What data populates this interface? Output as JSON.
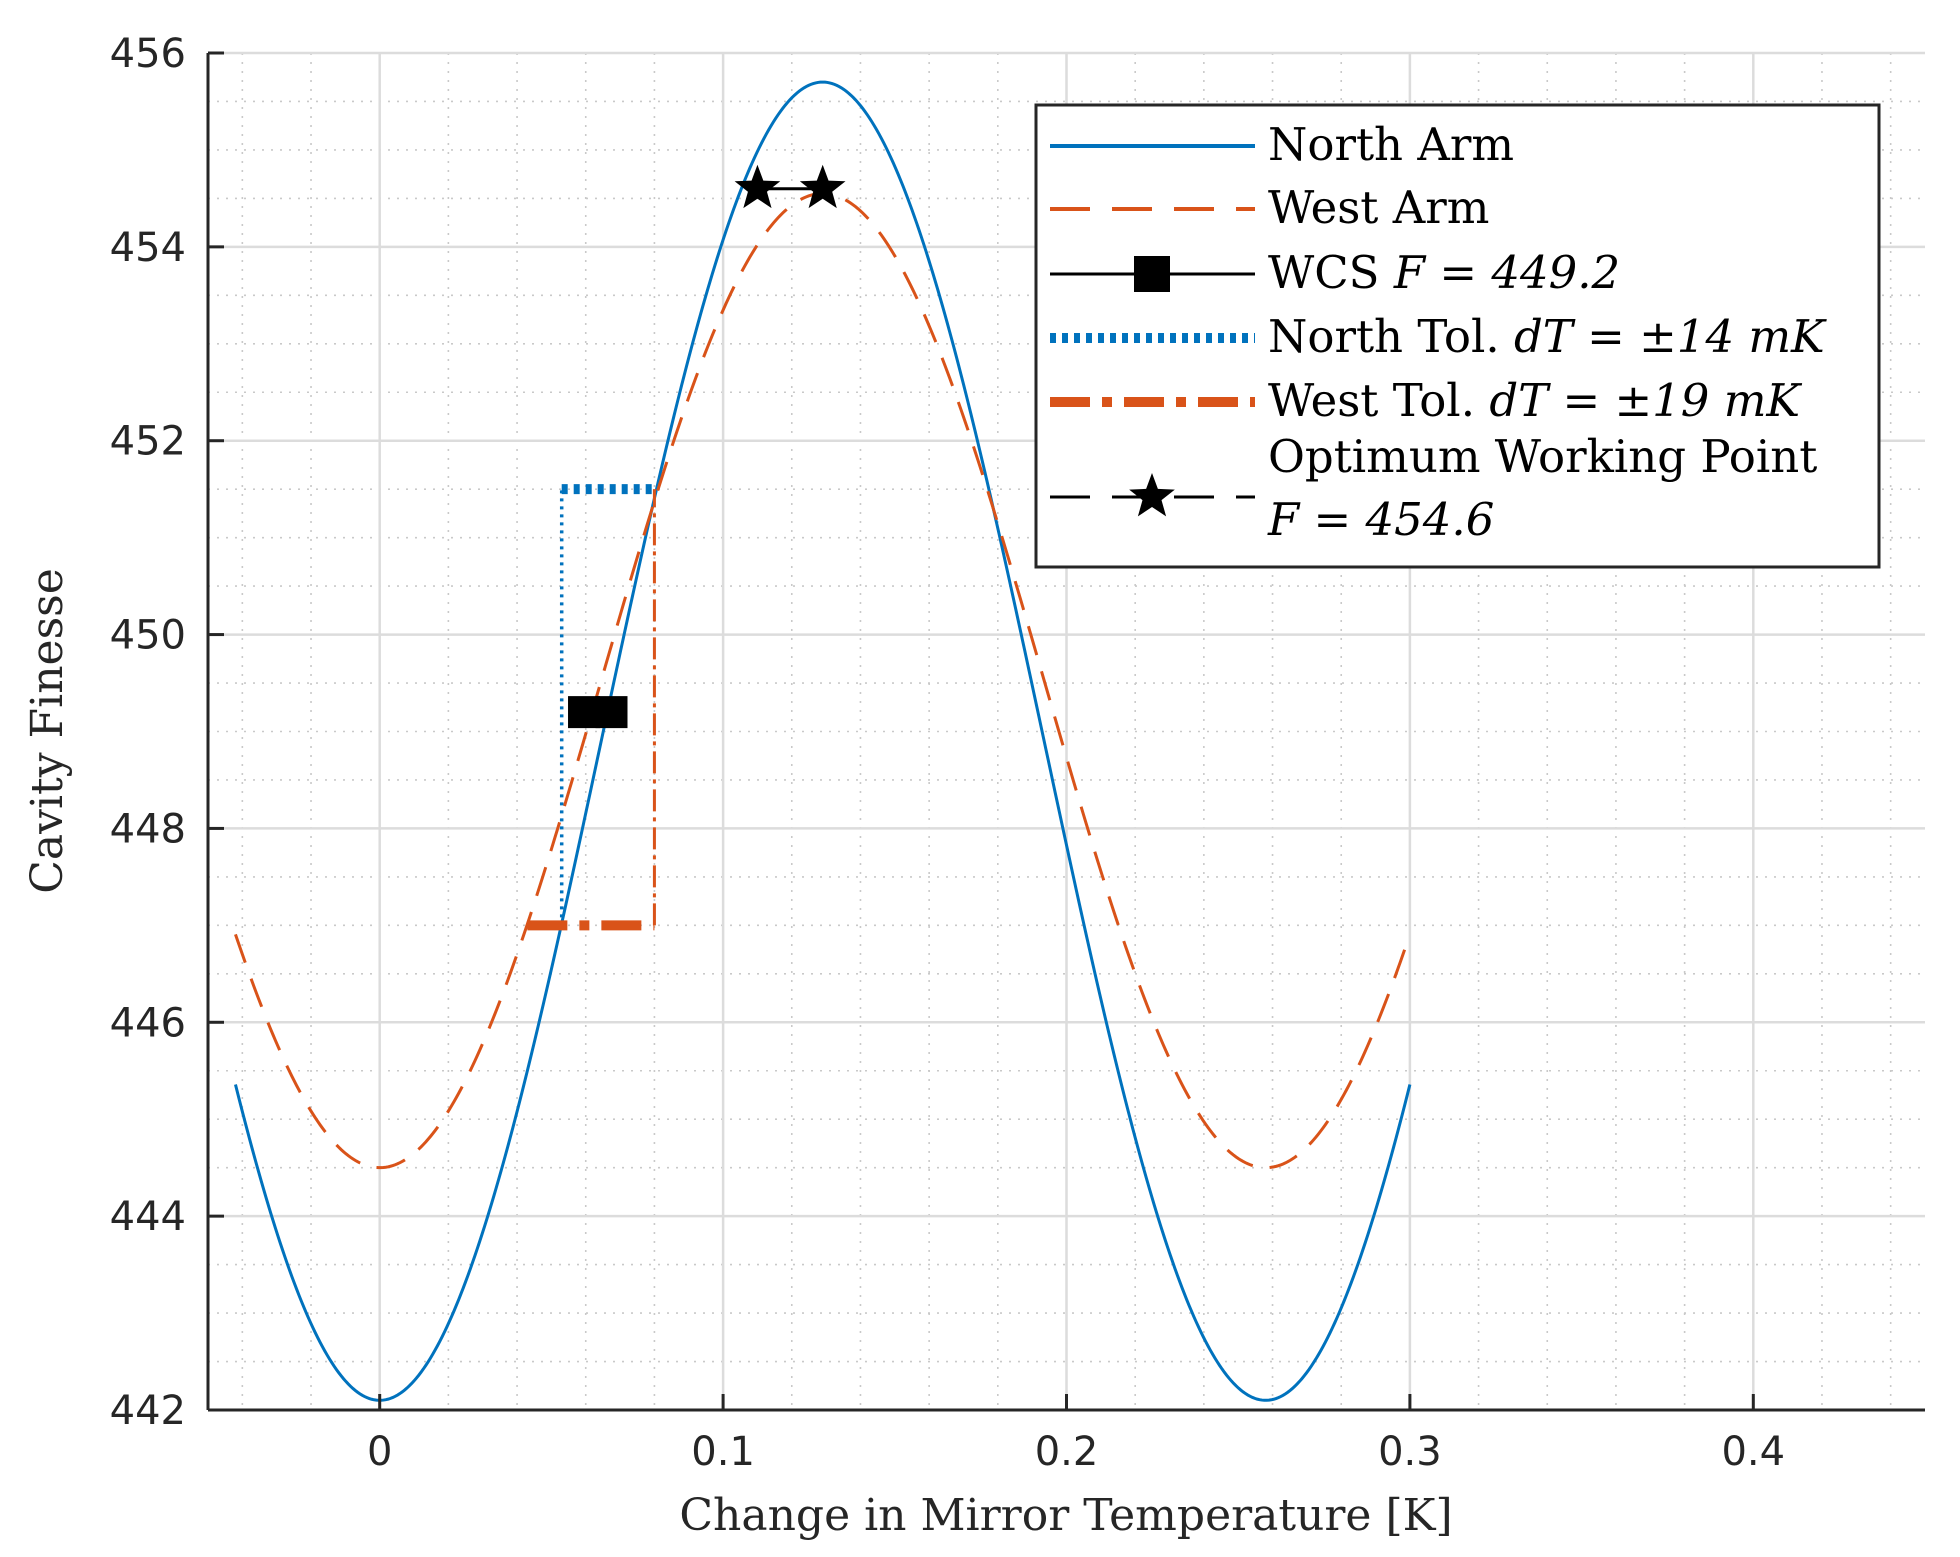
{
  "chart_data": {
    "type": "line",
    "xlabel": "Change in Mirror Temperature [K]",
    "ylabel": "Cavity Finesse",
    "xlim": [
      -0.05,
      0.45
    ],
    "ylim": [
      442,
      456
    ],
    "xticks": [
      0,
      0.1,
      0.2,
      0.3,
      0.4
    ],
    "xtick_labels": [
      "0",
      "0.1",
      "0.2",
      "0.3",
      "0.4"
    ],
    "yticks": [
      442,
      444,
      446,
      448,
      450,
      452,
      454,
      456
    ],
    "ytick_labels": [
      "442",
      "444",
      "446",
      "448",
      "450",
      "452",
      "454",
      "456"
    ],
    "grid": true,
    "minor_grid": true,
    "legend_position": "top-right",
    "colors": {
      "north": "#0072BD",
      "west": "#D95319",
      "marker": "#000000"
    },
    "series": [
      {
        "name": "North Arm",
        "style": "solid",
        "color": "#0072BD",
        "model": {
          "center": 448.9,
          "amplitude": 6.8,
          "period": 0.258,
          "phase_x": 0,
          "x_range": [
            -0.042,
            0.3
          ]
        }
      },
      {
        "name": "West Arm",
        "style": "dashed",
        "color": "#D95319",
        "model": {
          "center": 449.525,
          "amplitude": 5.025,
          "period": 0.258,
          "phase_x": 0,
          "x_range": [
            -0.042,
            0.3
          ]
        }
      }
    ],
    "tolerance_lines": [
      {
        "name": "North Tol.",
        "color": "#0072BD",
        "points": [
          [
            0.053,
            451.5
          ],
          [
            0.08,
            451.5
          ]
        ],
        "vertical_x": 0.053,
        "vertical_from": 447.0,
        "vertical_to": 451.5
      },
      {
        "name": "West Tol.",
        "color": "#D95319",
        "points": [
          [
            0.043,
            447.0
          ],
          [
            0.08,
            447.0
          ]
        ],
        "vertical_x": 0.08,
        "vertical_from": 447.0,
        "vertical_to": 451.5
      }
    ],
    "wcs_marker": {
      "x": [
        0.0595,
        0.0675
      ],
      "y": 449.2
    },
    "optimum_points": [
      {
        "x": 0.11,
        "y": 454.6
      },
      {
        "x": 0.129,
        "y": 454.6
      }
    ],
    "legend": [
      {
        "label": "North Arm",
        "style": "north-solid"
      },
      {
        "label": "West Arm",
        "style": "west-dashed"
      },
      {
        "label": "WCS ",
        "math": "F = 449.2",
        "style": "wcs-square"
      },
      {
        "label": "North Tol. ",
        "math": "dT = ±14 mK",
        "style": "north-dotted"
      },
      {
        "label": "West Tol. ",
        "math": "dT = ±19 mK",
        "style": "west-dashdot"
      },
      {
        "label": "Optimum Working Point",
        "math": "F = 454.6",
        "style": "star-dashed"
      }
    ]
  }
}
